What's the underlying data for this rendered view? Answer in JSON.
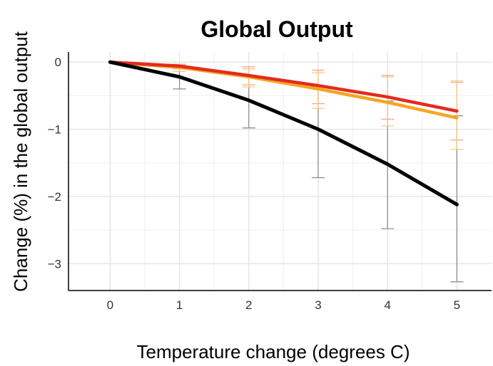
{
  "chart_data": {
    "type": "line",
    "title": "Global Output",
    "xlabel": "Temperature change (degrees C)",
    "ylabel": "Change (%) in the global output",
    "x": [
      0,
      1,
      2,
      3,
      4,
      5
    ],
    "xlim": [
      -0.6,
      5.5
    ],
    "ylim": [
      -3.4,
      0.15
    ],
    "x_ticks": [
      "0",
      "1",
      "2",
      "3",
      "4",
      "5"
    ],
    "y_ticks": [
      {
        "value": 0,
        "label": "0"
      },
      {
        "value": -1,
        "label": "−1"
      },
      {
        "value": -2,
        "label": "−2"
      },
      {
        "value": -3,
        "label": "−3"
      }
    ],
    "grid": true,
    "series": [
      {
        "color": "#000000",
        "values": [
          0,
          -0.22,
          -0.57,
          -1.0,
          -1.52,
          -2.12
        ],
        "error_low": [
          0,
          -0.4,
          -0.98,
          -1.72,
          -2.48,
          -3.27
        ],
        "error_high": [
          0,
          -0.08,
          -0.2,
          -0.36,
          -0.58,
          -0.8
        ]
      },
      {
        "color": "#e32b1d",
        "values": [
          0,
          -0.06,
          -0.2,
          -0.35,
          -0.52,
          -0.73
        ],
        "error_low": [
          0,
          -0.1,
          -0.34,
          -0.62,
          -0.85,
          -1.16
        ],
        "error_high": [
          0,
          -0.04,
          -0.07,
          -0.12,
          -0.2,
          -0.3
        ]
      },
      {
        "color": "#f5a623",
        "values": [
          0,
          -0.08,
          -0.22,
          -0.4,
          -0.6,
          -0.83
        ],
        "error_low": [
          0,
          -0.14,
          -0.37,
          -0.69,
          -0.95,
          -1.3
        ],
        "error_high": [
          0,
          -0.03,
          -0.1,
          -0.16,
          -0.22,
          -0.28
        ]
      }
    ]
  }
}
